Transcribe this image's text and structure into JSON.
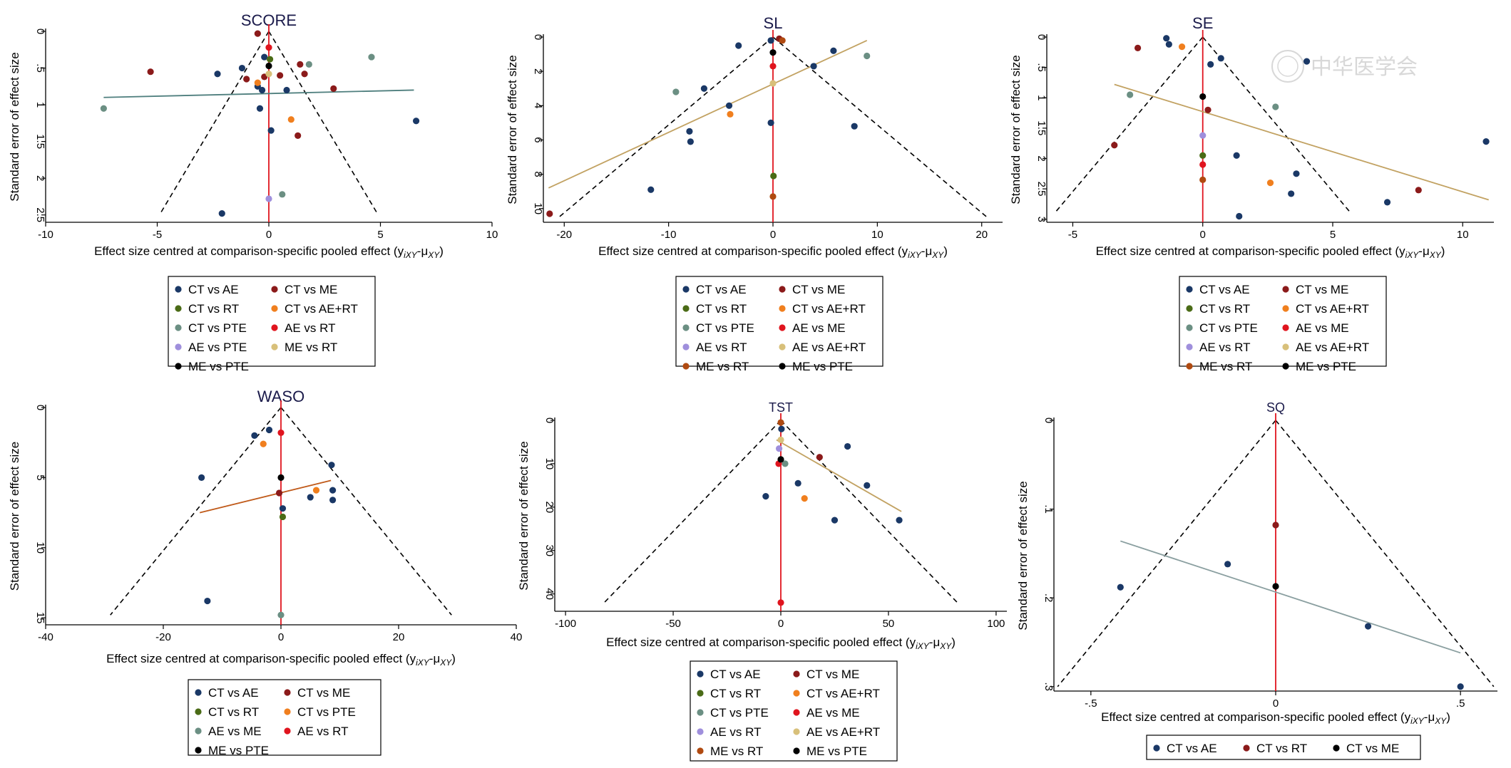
{
  "chart_data": [
    {
      "type": "scatter",
      "title": "SCORE",
      "xlabel": "Effect size centred at comparison-specific pooled effect (y",
      "xlabel_sub": "iXY",
      "xlabel_mid": "-μ",
      "xlabel_sub2": "XY",
      "xlabel_end": ")",
      "ylabel": "Standard error of effect size",
      "xlim": [
        -10,
        10
      ],
      "ylim": [
        2.6,
        0
      ],
      "xticks": [
        -10,
        -5,
        0,
        5,
        10
      ],
      "yticks": [
        0,
        0.5,
        1,
        1.5,
        2,
        2.5
      ],
      "ytick_labels": [
        "0",
        ".5",
        "1",
        "1.5",
        "2",
        "2.5"
      ],
      "funnel_se_max": 2.5,
      "funnel_half_width_at_max": 4.9,
      "regression": {
        "x1": -7.4,
        "y1": 0.9,
        "x2": 6.5,
        "y2": 0.8,
        "color": "#4f7f7e"
      },
      "legend_columns": 2,
      "series": [
        {
          "name": "CT vs AE",
          "color": "#1a3866",
          "points": [
            [
              -2.3,
              0.58
            ],
            [
              -1.2,
              0.5
            ],
            [
              -0.5,
              0.75
            ],
            [
              0.8,
              0.8
            ],
            [
              -0.4,
              1.05
            ],
            [
              0.1,
              1.35
            ],
            [
              6.6,
              1.22
            ],
            [
              -2.1,
              2.48
            ],
            [
              -0.3,
              0.8
            ],
            [
              -0.2,
              0.35
            ]
          ]
        },
        {
          "name": "CT vs ME",
          "color": "#8b1a1a",
          "points": [
            [
              -0.5,
              0.03
            ],
            [
              -5.3,
              0.55
            ],
            [
              -1.0,
              0.65
            ],
            [
              0.5,
              0.6
            ],
            [
              1.4,
              0.45
            ],
            [
              1.6,
              0.58
            ],
            [
              2.9,
              0.78
            ],
            [
              1.3,
              1.42
            ],
            [
              -0.2,
              0.62
            ]
          ]
        },
        {
          "name": "CT vs RT",
          "color": "#4a6b16",
          "points": [
            [
              0.05,
              0.38
            ]
          ]
        },
        {
          "name": "CT vs AE+RT",
          "color": "#f07f1e",
          "points": [
            [
              -0.5,
              0.7
            ],
            [
              1.0,
              1.2
            ]
          ]
        },
        {
          "name": "CT vs PTE",
          "color": "#6b8f83",
          "points": [
            [
              -7.4,
              1.05
            ],
            [
              1.8,
              0.45
            ],
            [
              4.6,
              0.35
            ],
            [
              0.6,
              2.22
            ]
          ]
        },
        {
          "name": "AE vs RT",
          "color": "#e0141e",
          "points": [
            [
              0.0,
              0.22
            ]
          ]
        },
        {
          "name": "AE vs PTE",
          "color": "#9f8fdc",
          "points": [
            [
              0.0,
              2.28
            ]
          ]
        },
        {
          "name": "ME vs RT",
          "color": "#d8c07a",
          "points": [
            [
              0.0,
              0.58
            ]
          ]
        },
        {
          "name": "ME vs PTE",
          "color": "#000000",
          "points": [
            [
              0.0,
              0.47
            ]
          ]
        }
      ]
    },
    {
      "type": "scatter",
      "title": "SL",
      "xlabel": "Effect size centred at comparison-specific pooled effect (y",
      "xlabel_sub": "iXY",
      "xlabel_mid": "-μ",
      "xlabel_sub2": "XY",
      "xlabel_end": ")",
      "ylabel": "Standard error of effect size",
      "xlim": [
        -22,
        22
      ],
      "ylim": [
        10.8,
        0
      ],
      "xticks": [
        -20,
        -10,
        0,
        10,
        20
      ],
      "yticks": [
        0,
        2,
        4,
        6,
        8,
        10
      ],
      "ytick_labels": [
        "0",
        "2",
        "4",
        "6",
        "8",
        "10"
      ],
      "funnel_se_max": 10.5,
      "funnel_half_width_at_max": 20.5,
      "regression": {
        "x1": -21.5,
        "y1": 8.8,
        "x2": 9.0,
        "y2": 0.2,
        "color": "#c2a262"
      },
      "legend_columns": 2,
      "series": [
        {
          "name": "CT vs AE",
          "color": "#1a3866",
          "points": [
            [
              -3.3,
              0.5
            ],
            [
              -6.6,
              3.0
            ],
            [
              -4.2,
              4.0
            ],
            [
              -8.0,
              5.5
            ],
            [
              -7.9,
              6.1
            ],
            [
              -11.7,
              8.9
            ],
            [
              -0.2,
              5.0
            ],
            [
              5.8,
              0.8
            ],
            [
              3.9,
              1.7
            ],
            [
              7.8,
              5.2
            ],
            [
              -0.2,
              0.2
            ]
          ]
        },
        {
          "name": "CT vs ME",
          "color": "#8b1a1a",
          "points": [
            [
              -21.4,
              10.3
            ],
            [
              0.6,
              0.1
            ]
          ]
        },
        {
          "name": "CT vs RT",
          "color": "#4a6b16",
          "points": [
            [
              0.05,
              8.1
            ]
          ]
        },
        {
          "name": "CT vs AE+RT",
          "color": "#f07f1e",
          "points": [
            [
              -4.1,
              4.5
            ]
          ]
        },
        {
          "name": "CT vs PTE",
          "color": "#6b8f83",
          "points": [
            [
              -9.3,
              3.2
            ],
            [
              9.0,
              1.1
            ]
          ]
        },
        {
          "name": "AE vs ME",
          "color": "#e0141e",
          "points": [
            [
              0.0,
              1.7
            ]
          ]
        },
        {
          "name": "AE vs RT",
          "color": "#9f8fdc",
          "points": []
        },
        {
          "name": "AE vs AE+RT",
          "color": "#d8c07a",
          "points": [
            [
              0.0,
              2.7
            ]
          ]
        },
        {
          "name": "ME vs RT",
          "color": "#b04a10",
          "points": [
            [
              0.0,
              9.3
            ],
            [
              0.9,
              0.2
            ]
          ]
        },
        {
          "name": "ME vs PTE",
          "color": "#000000",
          "points": [
            [
              0.0,
              0.9
            ]
          ]
        }
      ]
    },
    {
      "type": "scatter",
      "title": "SE",
      "xlabel": "Effect size centred at comparison-specific pooled effect (y",
      "xlabel_sub": "iXY",
      "xlabel_mid": "-μ",
      "xlabel_sub2": "XY",
      "xlabel_end": ")",
      "ylabel": "Standard error of effect size",
      "xlim": [
        -6,
        11.2
      ],
      "ylim": [
        3.05,
        0
      ],
      "xticks": [
        -5,
        0,
        5,
        10
      ],
      "yticks": [
        0,
        0.5,
        1,
        1.5,
        2,
        2.5,
        3
      ],
      "ytick_labels": [
        "0",
        ".5",
        "1",
        "1.5",
        "2",
        "2.5",
        "3"
      ],
      "funnel_se_max": 2.9,
      "funnel_half_width_at_max": 5.7,
      "regression": {
        "x1": -3.4,
        "y1": 0.78,
        "x2": 11.0,
        "y2": 2.68,
        "color": "#c2a262"
      },
      "legend_columns": 2,
      "series": [
        {
          "name": "CT vs AE",
          "color": "#1a3866",
          "points": [
            [
              -1.4,
              0.02
            ],
            [
              -1.3,
              0.12
            ],
            [
              0.7,
              0.35
            ],
            [
              4.0,
              0.4
            ],
            [
              0.3,
              0.45
            ],
            [
              1.3,
              1.95
            ],
            [
              3.6,
              2.25
            ],
            [
              3.4,
              2.58
            ],
            [
              1.4,
              2.95
            ],
            [
              7.1,
              2.72
            ],
            [
              10.9,
              1.72
            ]
          ]
        },
        {
          "name": "CT vs ME",
          "color": "#8b1a1a",
          "points": [
            [
              -2.5,
              0.18
            ],
            [
              -3.4,
              1.78
            ],
            [
              0.2,
              1.2
            ],
            [
              8.3,
              2.52
            ]
          ]
        },
        {
          "name": "CT vs RT",
          "color": "#4a6b16",
          "points": [
            [
              0.0,
              1.95
            ]
          ]
        },
        {
          "name": "CT vs AE+RT",
          "color": "#f07f1e",
          "points": [
            [
              -0.8,
              0.16
            ],
            [
              2.6,
              2.4
            ]
          ]
        },
        {
          "name": "CT vs PTE",
          "color": "#6b8f83",
          "points": [
            [
              -2.8,
              0.95
            ],
            [
              2.8,
              1.15
            ]
          ]
        },
        {
          "name": "AE vs ME",
          "color": "#e0141e",
          "points": [
            [
              0.0,
              2.1
            ]
          ]
        },
        {
          "name": "AE vs RT",
          "color": "#9f8fdc",
          "points": [
            [
              0.0,
              1.62
            ]
          ]
        },
        {
          "name": "AE vs AE+RT",
          "color": "#d8c07a",
          "points": []
        },
        {
          "name": "ME vs RT",
          "color": "#b04a10",
          "points": [
            [
              0.0,
              2.35
            ]
          ]
        },
        {
          "name": "ME vs PTE",
          "color": "#000000",
          "points": [
            [
              0.0,
              0.98
            ]
          ]
        }
      ]
    },
    {
      "type": "scatter",
      "title": "WASO",
      "xlabel": "Effect size centred at comparison-specific pooled effect (y",
      "xlabel_sub": "iXY",
      "xlabel_mid": "-μ",
      "xlabel_sub2": "XY",
      "xlabel_end": ")",
      "ylabel": "Standard error of effect size",
      "xlim": [
        -40,
        40
      ],
      "ylim": [
        15.5,
        0
      ],
      "xticks": [
        -40,
        -20,
        0,
        20,
        40
      ],
      "yticks": [
        0,
        5,
        10,
        15
      ],
      "ytick_labels": [
        "0",
        "5",
        "10",
        "15"
      ],
      "funnel_se_max": 14.8,
      "funnel_half_width_at_max": 29,
      "regression": {
        "x1": -13.8,
        "y1": 7.5,
        "x2": 8.5,
        "y2": 5.2,
        "color": "#c05a1a"
      },
      "legend_columns": 2,
      "series": [
        {
          "name": "CT vs AE",
          "color": "#1a3866",
          "points": [
            [
              -4.5,
              2.0
            ],
            [
              -2.0,
              1.6
            ],
            [
              -13.5,
              5.0
            ],
            [
              -12.5,
              13.8
            ],
            [
              8.6,
              4.1
            ],
            [
              8.8,
              5.9
            ],
            [
              8.8,
              6.6
            ],
            [
              5.0,
              6.4
            ],
            [
              0.3,
              7.2
            ]
          ]
        },
        {
          "name": "CT vs ME",
          "color": "#8b1a1a",
          "points": [
            [
              -0.3,
              6.1
            ]
          ]
        },
        {
          "name": "CT vs RT",
          "color": "#4a6b16",
          "points": [
            [
              0.3,
              7.8
            ]
          ]
        },
        {
          "name": "CT vs PTE",
          "color": "#f07f1e",
          "points": [
            [
              -3.0,
              2.6
            ],
            [
              6.0,
              5.9
            ]
          ]
        },
        {
          "name": "AE vs ME",
          "color": "#6b8f83",
          "points": [
            [
              0.0,
              14.8
            ]
          ]
        },
        {
          "name": "AE vs RT",
          "color": "#e0141e",
          "points": [
            [
              0.0,
              1.8
            ]
          ]
        },
        {
          "name": "ME vs PTE",
          "color": "#000000",
          "points": [
            [
              0.0,
              5.0
            ]
          ]
        }
      ]
    },
    {
      "type": "scatter",
      "title": "TST",
      "xlabel": "Effect size centred at comparison-specific pooled effect (y",
      "xlabel_sub": "iXY",
      "xlabel_mid": "-μ",
      "xlabel_sub2": "XY",
      "xlabel_end": ")",
      "ylabel": "Standard error of effect size",
      "xlim": [
        -105,
        105
      ],
      "ylim": [
        44,
        0
      ],
      "xticks": [
        -100,
        -50,
        0,
        50,
        100
      ],
      "yticks": [
        0,
        10,
        20,
        30,
        40
      ],
      "ytick_labels": [
        "0",
        "10",
        "20",
        "30",
        "40"
      ],
      "funnel_se_max": 42,
      "funnel_half_width_at_max": 82,
      "regression": {
        "x1": -2.0,
        "y1": 4.5,
        "x2": 56.0,
        "y2": 21.0,
        "color": "#c2a262"
      },
      "legend_columns": 2,
      "series": [
        {
          "name": "CT vs AE",
          "color": "#1a3866",
          "points": [
            [
              0.3,
              2.0
            ],
            [
              31.0,
              6.0
            ],
            [
              40.0,
              15.0
            ],
            [
              8.0,
              14.5
            ],
            [
              -7.0,
              17.5
            ],
            [
              25.0,
              23.0
            ],
            [
              55.0,
              23.0
            ]
          ]
        },
        {
          "name": "CT vs ME",
          "color": "#8b1a1a",
          "points": [
            [
              18.0,
              8.5
            ]
          ]
        },
        {
          "name": "CT vs RT",
          "color": "#4a6b16",
          "points": []
        },
        {
          "name": "CT vs AE+RT",
          "color": "#f07f1e",
          "points": [
            [
              11.0,
              18.0
            ]
          ]
        },
        {
          "name": "CT vs PTE",
          "color": "#6b8f83",
          "points": [
            [
              2.0,
              10.0
            ]
          ]
        },
        {
          "name": "AE vs ME",
          "color": "#e0141e",
          "points": [
            [
              -1.0,
              10.0
            ],
            [
              0.0,
              42.0
            ]
          ]
        },
        {
          "name": "AE vs RT",
          "color": "#9f8fdc",
          "points": [
            [
              -0.8,
              6.5
            ]
          ]
        },
        {
          "name": "AE vs AE+RT",
          "color": "#d8c07a",
          "points": [
            [
              0.0,
              4.5
            ]
          ]
        },
        {
          "name": "ME vs RT",
          "color": "#b04a10",
          "points": [
            [
              0.0,
              0.5
            ]
          ]
        },
        {
          "name": "ME vs PTE",
          "color": "#000000",
          "points": [
            [
              0.0,
              9.0
            ]
          ]
        }
      ]
    },
    {
      "type": "scatter",
      "title": "SQ",
      "xlabel": "Effect size centred at comparison-specific pooled effect (y",
      "xlabel_sub": "iXY",
      "xlabel_mid": "-μ",
      "xlabel_sub2": "XY",
      "xlabel_end": ")",
      "ylabel": "Standard error of effect size",
      "xlim": [
        -0.6,
        0.6
      ],
      "ylim": [
        0.305,
        0
      ],
      "xticks": [
        -0.5,
        0,
        0.5
      ],
      "xtick_labels": [
        "-.5",
        "0",
        ".5"
      ],
      "yticks": [
        0,
        0.1,
        0.2,
        0.3
      ],
      "ytick_labels": [
        "0",
        ".1",
        ".2",
        ".3"
      ],
      "funnel_se_max": 0.3,
      "funnel_half_width_at_max": 0.59,
      "regression": {
        "x1": -0.42,
        "y1": 0.136,
        "x2": 0.5,
        "y2": 0.262,
        "color": "#8a9fa0"
      },
      "legend_columns": 3,
      "series": [
        {
          "name": "CT vs AE",
          "color": "#1a3866",
          "points": [
            [
              -0.42,
              0.188
            ],
            [
              -0.13,
              0.162
            ],
            [
              0.25,
              0.232
            ],
            [
              0.5,
              0.3
            ]
          ]
        },
        {
          "name": "CT vs RT",
          "color": "#8b1a1a",
          "points": [
            [
              0.0,
              0.118
            ]
          ]
        },
        {
          "name": "CT vs ME",
          "color": "#000000",
          "points": [
            [
              0.0,
              0.187
            ]
          ]
        }
      ]
    }
  ],
  "watermark": "中华医学会"
}
